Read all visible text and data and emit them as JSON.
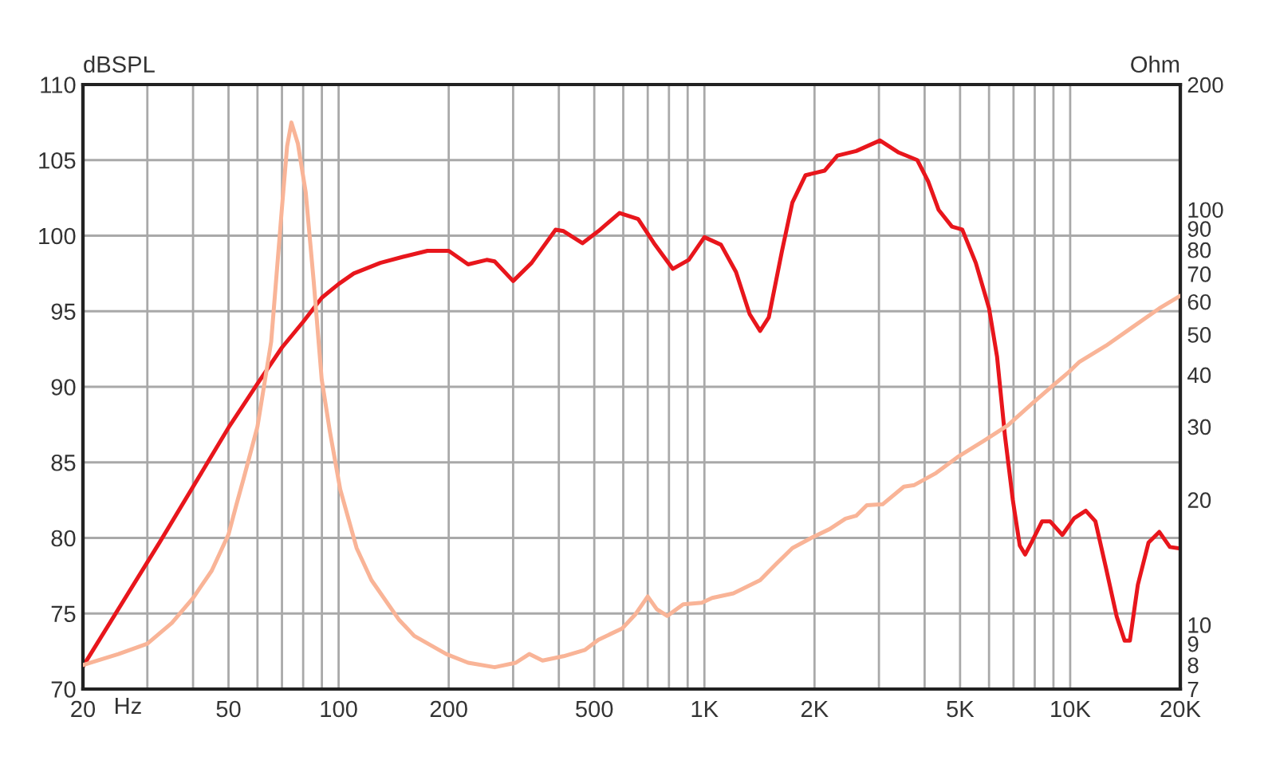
{
  "chart_data": [
    {
      "type": "line",
      "xlabel": "Hz",
      "ylabel": "dBSPL",
      "xlim": [
        20,
        20000
      ],
      "xticks": [
        20,
        {
          "value": 30,
          "label": null
        },
        {
          "value": 40,
          "label": null
        },
        50,
        {
          "value": 60,
          "label": null
        },
        {
          "value": 70,
          "label": null
        },
        {
          "value": 80,
          "label": null
        },
        {
          "value": 90,
          "label": null
        },
        100,
        200,
        {
          "value": 300,
          "label": null
        },
        {
          "value": 400,
          "label": null
        },
        500,
        {
          "value": 600,
          "label": null
        },
        {
          "value": 700,
          "label": null
        },
        {
          "value": 800,
          "label": null
        },
        {
          "value": 900,
          "label": null
        },
        {
          "value": 1000,
          "label": "1K"
        },
        {
          "value": 2000,
          "label": "2K"
        },
        {
          "value": 3000,
          "label": null
        },
        {
          "value": 4000,
          "label": null
        },
        {
          "value": 5000,
          "label": "5K"
        },
        {
          "value": 6000,
          "label": null
        },
        {
          "value": 7000,
          "label": null
        },
        {
          "value": 8000,
          "label": null
        },
        {
          "value": 9000,
          "label": null
        },
        {
          "value": 10000,
          "label": "10K"
        },
        {
          "value": 20000,
          "label": "20K"
        }
      ],
      "ylim": [
        70,
        110
      ],
      "yticks": [
        70,
        75,
        80,
        85,
        90,
        95,
        100,
        105,
        110
      ],
      "log": "x",
      "grid": true,
      "series": [
        {
          "color": "#e8161c",
          "x": [
            20,
            32.4,
            50,
            60,
            70,
            80,
            90,
            100,
            110,
            130,
            150,
            175,
            200,
            226,
            254,
            267,
            300,
            337,
            392,
            412,
            464,
            513,
            586,
            659,
            728,
            820,
            906,
            1000,
            1110,
            1220,
            1330,
            1420,
            1500,
            1630,
            1740,
            1890,
            2130,
            2310,
            2600,
            3020,
            3400,
            3820,
            4090,
            4370,
            4750,
            5070,
            5520,
            6000,
            6310,
            6630,
            6970,
            7280,
            7530,
            7840,
            8380,
            8810,
            9520,
            10250,
            11030,
            11720,
            12530,
            13400,
            14090,
            14560,
            15310,
            16380,
            17520,
            18730,
            20000
          ],
          "values": [
            71.5,
            79.7,
            87.3,
            90.2,
            92.6,
            94.3,
            95.9,
            96.8,
            97.5,
            98.2,
            98.6,
            99.0,
            99.0,
            98.1,
            98.4,
            98.3,
            97.0,
            98.2,
            100.4,
            100.3,
            99.5,
            100.3,
            101.5,
            101.1,
            99.5,
            97.8,
            98.4,
            99.9,
            99.4,
            97.6,
            94.8,
            93.7,
            94.6,
            99.0,
            102.2,
            104.0,
            104.3,
            105.3,
            105.6,
            106.3,
            105.5,
            105.0,
            103.6,
            101.7,
            100.6,
            100.4,
            98.2,
            95.2,
            92.0,
            86.8,
            82.5,
            79.5,
            78.9,
            79.7,
            81.1,
            81.1,
            80.2,
            81.3,
            81.8,
            81.1,
            78.0,
            74.8,
            73.2,
            73.2,
            76.9,
            79.7,
            80.4,
            79.4,
            79.3
          ]
        }
      ]
    },
    {
      "type": "line",
      "ylabel": "Ohm",
      "xlim": [
        20,
        20000
      ],
      "ylim": [
        7,
        200
      ],
      "yticks": [
        7,
        8,
        9,
        10,
        20,
        30,
        40,
        50,
        60,
        70,
        80,
        90,
        100,
        200
      ],
      "log": "xy",
      "tick_labels": "y",
      "series": [
        {
          "color": "#f9b497",
          "x": [
            20,
            25,
            30,
            35,
            40,
            45,
            50,
            52.5,
            55,
            60,
            65.4,
            70,
            72.3,
            74.3,
            77.4,
            81.3,
            85.5,
            89.9,
            94.6,
            101,
            112,
            123,
            146,
            161,
            197,
            226,
            267,
            305,
            332,
            361,
            412,
            472,
            513,
            596,
            648,
            700,
            741,
            792,
            875,
            984,
            1050,
            1200,
            1420,
            1570,
            1740,
            1990,
            2200,
            2430,
            2600,
            2780,
            3070,
            3510,
            3750,
            4300,
            4910,
            5800,
            6750,
            7840,
            8970,
            9910,
            10610,
            12530,
            14810,
            17520,
            20000
          ],
          "values": [
            8.0,
            8.5,
            9.0,
            10.1,
            11.6,
            13.5,
            16.5,
            19.4,
            22.5,
            30,
            48,
            101,
            142,
            162,
            144,
            110,
            67,
            39,
            29.3,
            21.2,
            15.3,
            12.8,
            10.3,
            9.4,
            8.5,
            8.1,
            7.9,
            8.1,
            8.5,
            8.2,
            8.4,
            8.7,
            9.2,
            9.8,
            10.6,
            11.7,
            10.9,
            10.5,
            11.2,
            11.3,
            11.6,
            11.9,
            12.8,
            14.0,
            15.3,
            16.3,
            17.0,
            18.0,
            18.3,
            19.4,
            19.5,
            21.5,
            21.7,
            23.2,
            25.3,
            27.7,
            30.2,
            34.0,
            37.7,
            40.6,
            43.0,
            47.0,
            52.1,
            57.8,
            62
          ]
        }
      ]
    }
  ]
}
